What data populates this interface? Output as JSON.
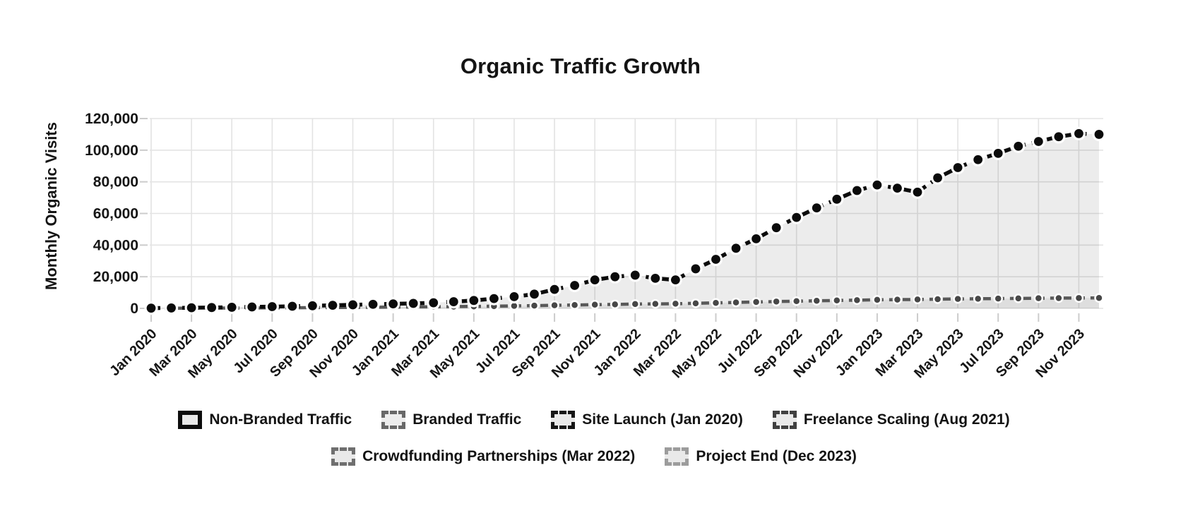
{
  "title": "Organic Traffic Growth",
  "axes": {
    "y_label": "Monthly Organic Visits"
  },
  "legend": {
    "rows": [
      [
        {
          "label": "Non-Branded Traffic",
          "border_color": "#0d0d0d",
          "border_style": "solid",
          "fill": "#e9e9e9"
        },
        {
          "label": "Branded Traffic",
          "border_color": "#686868",
          "border_style": "dashed",
          "fill": "#ededed"
        },
        {
          "label": "Site Launch (Jan 2020)",
          "border_color": "#161616",
          "border_style": "dashed",
          "fill": "#e9e9e9"
        },
        {
          "label": "Freelance Scaling (Aug 2021)",
          "border_color": "#404040",
          "border_style": "dashed",
          "fill": "#e9e9e9"
        }
      ],
      [
        {
          "label": "Crowdfunding Partnerships (Mar 2022)",
          "border_color": "#6f6f6f",
          "border_style": "dashed",
          "fill": "#e9e9e9"
        },
        {
          "label": "Project End (Dec 2023)",
          "border_color": "#9c9c9c",
          "border_style": "dashed",
          "fill": "#e9e9e9"
        }
      ]
    ]
  },
  "chart_data": {
    "type": "line",
    "title": "Organic Traffic Growth",
    "xlabel": "",
    "ylabel": "Monthly Organic Visits",
    "ylim": [
      0,
      120000
    ],
    "y_ticks": [
      0,
      20000,
      40000,
      60000,
      80000,
      100000,
      120000
    ],
    "grid": true,
    "legend_position": "bottom",
    "x_tick_step": 2,
    "x": [
      "Jan 2020",
      "Feb 2020",
      "Mar 2020",
      "Apr 2020",
      "May 2020",
      "Jun 2020",
      "Jul 2020",
      "Aug 2020",
      "Sep 2020",
      "Oct 2020",
      "Nov 2020",
      "Dec 2020",
      "Jan 2021",
      "Feb 2021",
      "Mar 2021",
      "Apr 2021",
      "May 2021",
      "Jun 2021",
      "Jul 2021",
      "Aug 2021",
      "Sep 2021",
      "Oct 2021",
      "Nov 2021",
      "Dec 2021",
      "Jan 2022",
      "Feb 2022",
      "Mar 2022",
      "Apr 2022",
      "May 2022",
      "Jun 2022",
      "Jul 2022",
      "Aug 2022",
      "Sep 2022",
      "Oct 2022",
      "Nov 2022",
      "Dec 2022",
      "Jan 2023",
      "Feb 2023",
      "Mar 2023",
      "Apr 2023",
      "May 2023",
      "Jun 2023",
      "Jul 2023",
      "Aug 2023",
      "Sep 2023",
      "Oct 2023",
      "Nov 2023",
      "Dec 2023"
    ],
    "series": [
      {
        "name": "Non-Branded Traffic",
        "line_color": "#0b0b0b",
        "point_color": "#0b0b0b",
        "fill_color": "rgba(0,0,0,0.075)",
        "dashed": true,
        "values": [
          150,
          260,
          380,
          520,
          700,
          900,
          1100,
          1350,
          1650,
          1950,
          2250,
          2550,
          2850,
          3150,
          3550,
          4200,
          5000,
          6200,
          7400,
          9000,
          12000,
          14500,
          18000,
          20000,
          21000,
          19000,
          18000,
          25000,
          31000,
          38000,
          44000,
          51000,
          57500,
          63500,
          69000,
          74500,
          78000,
          76000,
          73500,
          82500,
          89000,
          94000,
          98000,
          102500,
          105500,
          108500,
          110500,
          110000
        ]
      },
      {
        "name": "Branded Traffic",
        "line_color": "#595959",
        "point_color": "#474747",
        "fill_color": "rgba(0,0,0,0.06)",
        "dashed": true,
        "values": [
          60,
          90,
          130,
          170,
          220,
          270,
          330,
          390,
          460,
          530,
          610,
          700,
          800,
          900,
          1000,
          1120,
          1250,
          1400,
          1560,
          1740,
          1930,
          2130,
          2330,
          2530,
          2730,
          2830,
          2930,
          3200,
          3480,
          3760,
          4040,
          4320,
          4560,
          4800,
          5000,
          5200,
          5400,
          5520,
          5640,
          5800,
          5950,
          6080,
          6200,
          6300,
          6400,
          6480,
          6550,
          6600
        ]
      }
    ],
    "annotations": [
      {
        "label": "Site Launch",
        "x": "Jan 2020"
      },
      {
        "label": "Freelance Scaling",
        "x": "Aug 2021"
      },
      {
        "label": "Crowdfunding Partnerships",
        "x": "Mar 2022"
      },
      {
        "label": "Project End",
        "x": "Dec 2023"
      }
    ]
  }
}
